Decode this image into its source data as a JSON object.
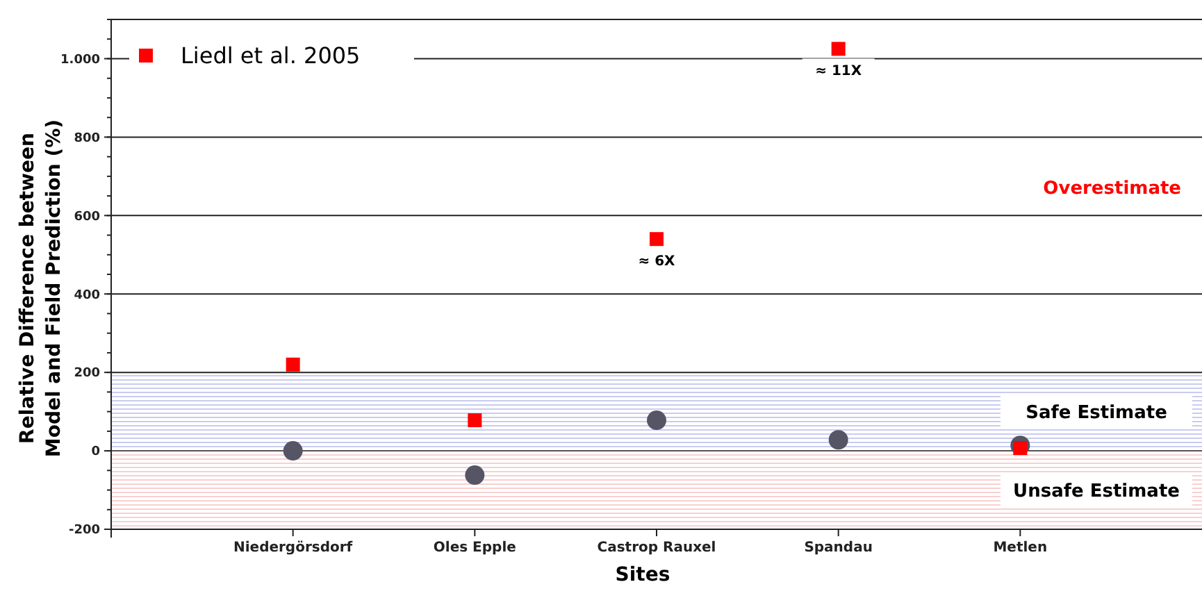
{
  "chart_data": {
    "type": "scatter",
    "xlabel": "Sites",
    "ylabel": "Relative Difference between\nModel and Field Prediction (%)",
    "categories": [
      "Niedergörsdorf",
      "Oles Epple",
      "Castrop Rauxel",
      "Spandau",
      "Metlen"
    ],
    "series": [
      {
        "color": "#555566",
        "marker": "circle",
        "values": [
          0,
          -62,
          78,
          28,
          14
        ]
      },
      {
        "name": "Liedl et al. 2005",
        "color": "#ff0000",
        "marker": "square",
        "values": [
          220,
          78,
          540,
          1025,
          7
        ]
      }
    ],
    "ylim": [
      -200,
      1100
    ],
    "yticks": [
      -200,
      0,
      200,
      400,
      600,
      800,
      {
        "value": 1000,
        "label": "1.000"
      }
    ],
    "grid": "y",
    "legend": "top left",
    "bands": [
      {
        "axis": "y",
        "from": 0,
        "to": 200,
        "label": "Safe Estimate",
        "color": "#c8ccf0"
      },
      {
        "axis": "y",
        "from": -200,
        "to": 0,
        "label": "Unsafe Estimate",
        "color": "#f8d0d0"
      }
    ],
    "annotations": [
      "Overestimate",
      {
        "text": "≈ 6X",
        "x": "Castrop Rauxel",
        "y": 540
      },
      {
        "text": "≈ 11X",
        "x": "Spandau",
        "y": 1025
      }
    ]
  }
}
